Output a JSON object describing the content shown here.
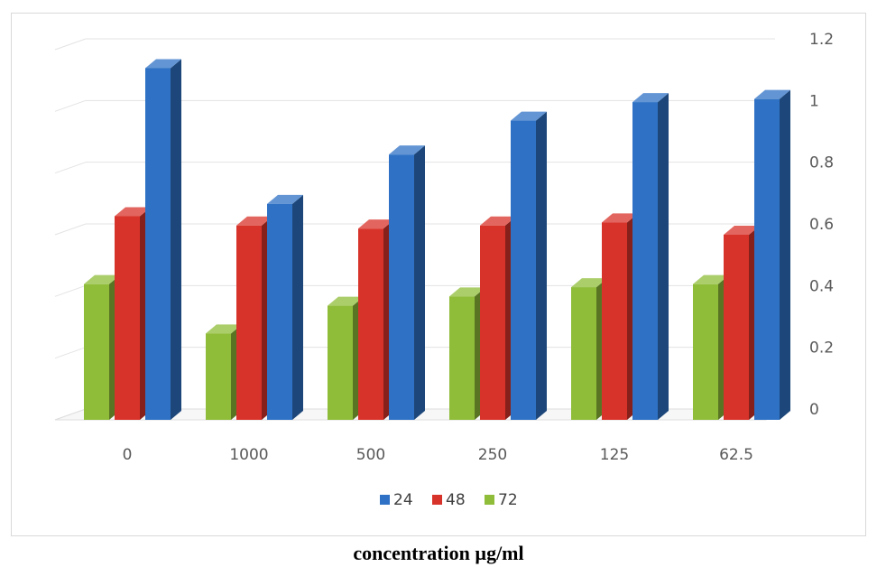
{
  "chart_data": {
    "type": "bar",
    "categories": [
      "0",
      "1000",
      "500",
      "250",
      "125",
      "62.5"
    ],
    "series": [
      {
        "name": "72",
        "color": "#8fbd3a",
        "values": [
          0.44,
          0.28,
          0.37,
          0.4,
          0.43,
          0.44
        ]
      },
      {
        "name": "48",
        "color": "#d8332a",
        "values": [
          0.66,
          0.63,
          0.62,
          0.63,
          0.64,
          0.6
        ]
      },
      {
        "name": "24",
        "color": "#2f72c5",
        "values": [
          1.14,
          0.7,
          0.86,
          0.97,
          1.03,
          1.04
        ]
      }
    ],
    "legend_order": [
      "24",
      "48",
      "72"
    ],
    "xlabel": "concentration µg/ml",
    "ylabel": "",
    "ylim": [
      0,
      1.2
    ],
    "yticks": [
      "0",
      "0.2",
      "0.4",
      "0.6",
      "0.8",
      "1",
      "1.2"
    ],
    "y_axis_side": "right",
    "legend_position": "bottom",
    "grid": true,
    "style": "3d-columns"
  }
}
